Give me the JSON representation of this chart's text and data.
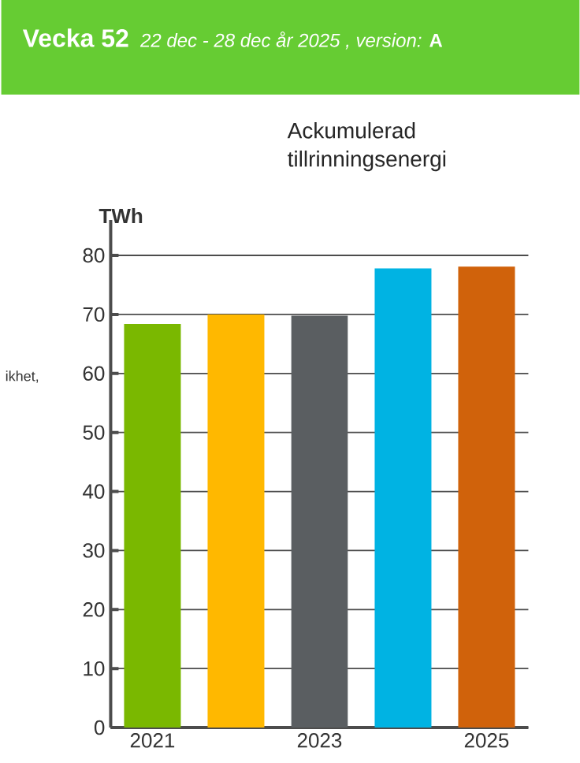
{
  "chart_data": {
    "type": "bar",
    "title": "Vecka 52",
    "subtitle": "*22 dec - 28 dec år 2025 , version:* **A**",
    "xlabel": null,
    "ylabel": "TWh",
    "annotations": [
      "Ackumulerad tillrinningsenergi",
      "ikhet,"
    ],
    "categories": [
      "2021",
      null,
      "2023",
      null,
      "2025"
    ],
    "values": [
      68.4,
      70.0,
      69.8,
      77.8,
      78.1
    ],
    "colors": [
      "#7ab800",
      "#ffb800",
      "#5a5e61",
      "#00b3e3",
      "#d0620b"
    ],
    "ylim": [
      0,
      86
    ],
    "yticks": [
      0,
      10,
      20,
      30,
      40,
      50,
      60,
      70,
      80
    ],
    "grid": "y"
  }
}
